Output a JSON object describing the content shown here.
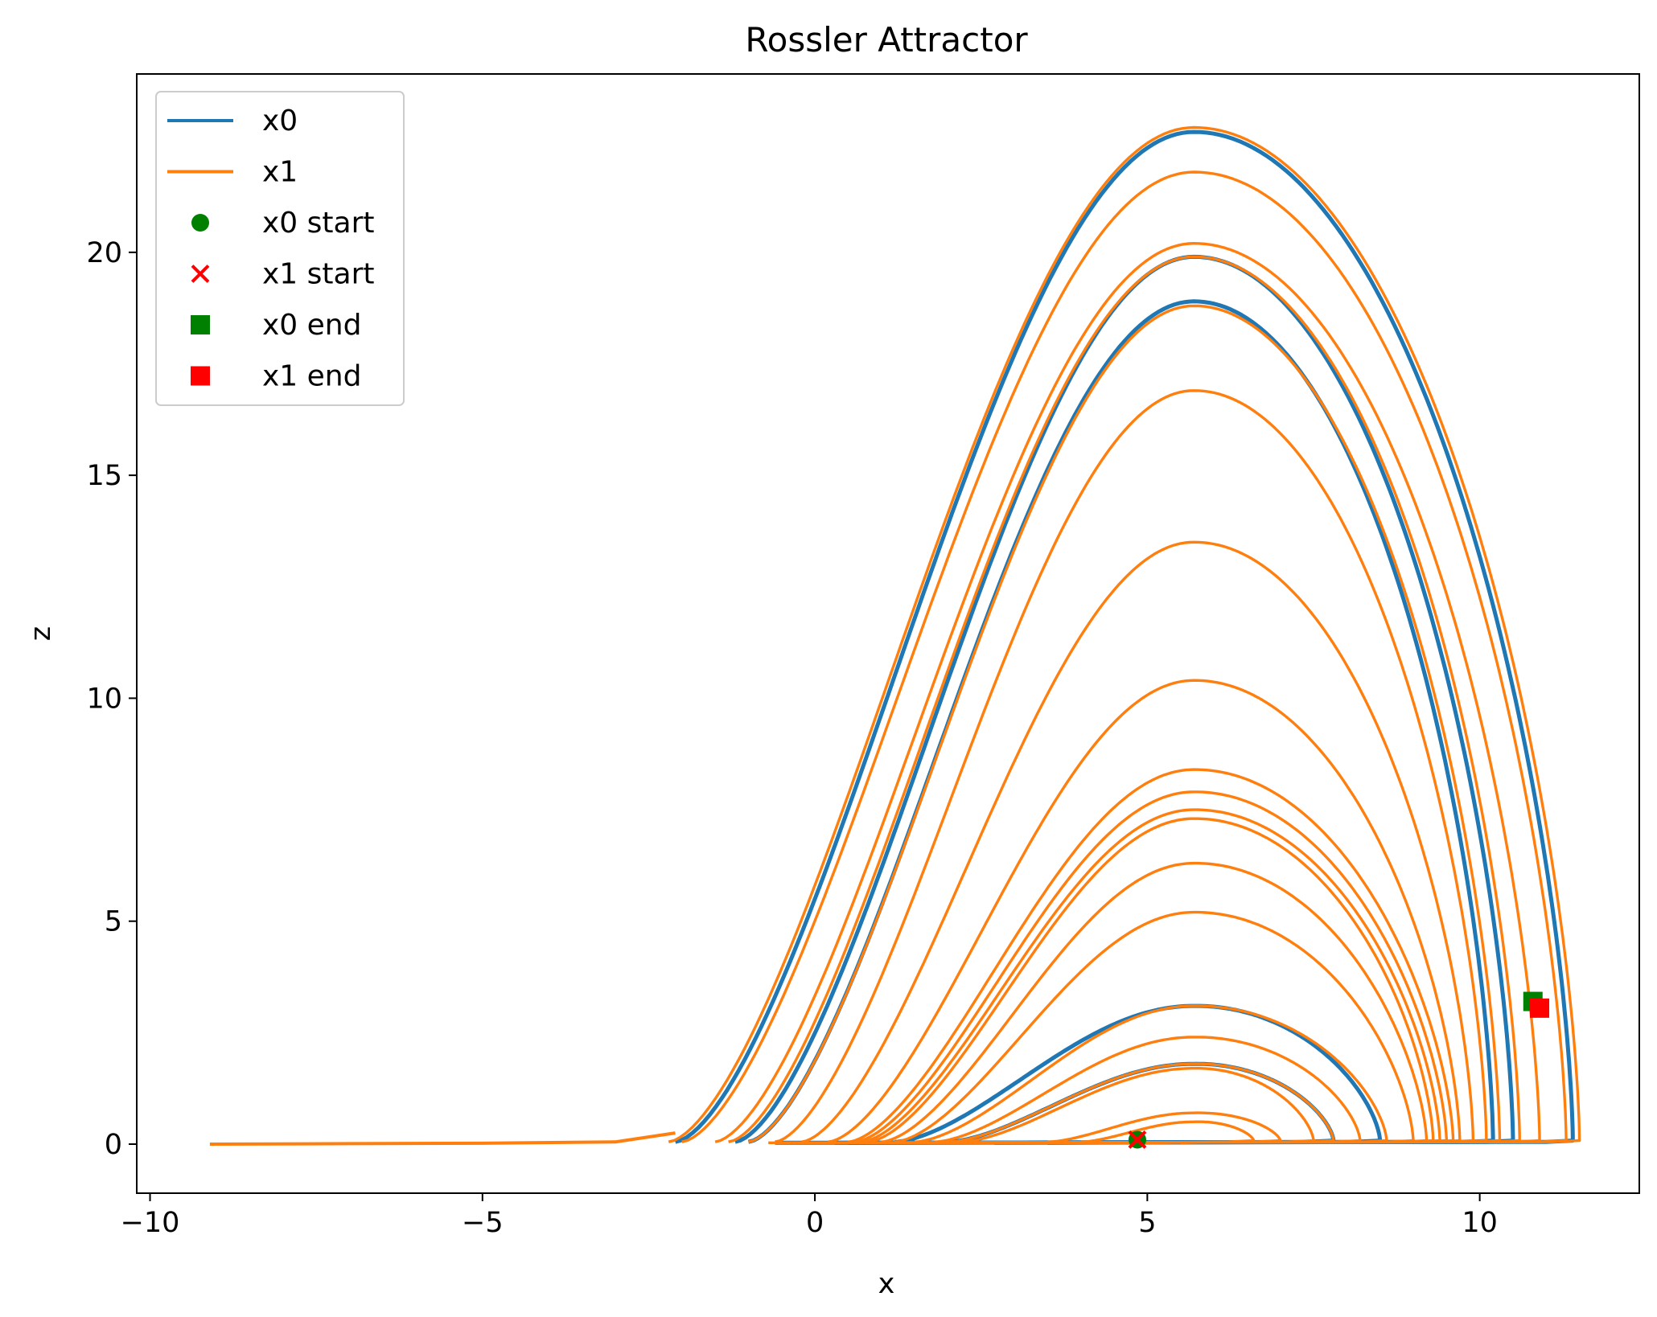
{
  "chart_data": {
    "type": "line",
    "title": "Rossler Attractor",
    "xlabel": "x",
    "ylabel": "z",
    "xlim": [
      -10.2,
      12.4
    ],
    "ylim": [
      -1.1,
      24.0
    ],
    "xticks": [
      -10,
      -5,
      0,
      5,
      10
    ],
    "yticks": [
      0,
      5,
      10,
      15,
      20
    ],
    "xtick_labels": [
      "−10",
      "−5",
      "0",
      "5",
      "10"
    ],
    "ytick_labels": [
      "0",
      "5",
      "10",
      "15",
      "20"
    ],
    "grid": false,
    "legend": {
      "placement": "upper-left",
      "entries": [
        {
          "label": "x0",
          "kind": "line",
          "color": "#1f77b4"
        },
        {
          "label": "x1",
          "kind": "line",
          "color": "#ff7f0e"
        },
        {
          "label": "x0 start",
          "kind": "circle",
          "color": "#008000"
        },
        {
          "label": "x1 start",
          "kind": "x",
          "color": "#ff0000"
        },
        {
          "label": "x0 end",
          "kind": "square",
          "color": "#008000"
        },
        {
          "label": "x1 end",
          "kind": "square",
          "color": "#ff0000"
        }
      ]
    },
    "series": [
      {
        "name": "x0",
        "color": "#1f77b4",
        "loops": [
          {
            "peak": 22.7,
            "xmin": -2.1,
            "xmax": 11.4
          },
          {
            "peak": 19.9,
            "xmin": -1.2,
            "xmax": 10.5
          },
          {
            "peak": 18.9,
            "xmin": -1.0,
            "xmax": 10.2
          },
          {
            "peak": 3.1,
            "xmin": 1.2,
            "xmax": 8.5
          },
          {
            "peak": 1.8,
            "xmin": 2.0,
            "xmax": 7.8
          }
        ]
      },
      {
        "name": "x1",
        "color": "#ff7f0e",
        "loops": [
          {
            "peak": 22.8,
            "xmin": -2.2,
            "xmax": 11.5
          },
          {
            "peak": 21.8,
            "xmin": -2.0,
            "xmax": 11.3
          },
          {
            "peak": 20.2,
            "xmin": -1.5,
            "xmax": 10.9
          },
          {
            "peak": 19.9,
            "xmin": -1.3,
            "xmax": 10.6
          },
          {
            "peak": 18.8,
            "xmin": -1.0,
            "xmax": 10.3
          },
          {
            "peak": 16.9,
            "xmin": -0.6,
            "xmax": 10.1
          },
          {
            "peak": 13.5,
            "xmin": -0.2,
            "xmax": 9.9
          },
          {
            "peak": 10.4,
            "xmin": 0.2,
            "xmax": 9.7
          },
          {
            "peak": 8.4,
            "xmin": 0.5,
            "xmax": 9.6
          },
          {
            "peak": 7.9,
            "xmin": 0.6,
            "xmax": 9.5
          },
          {
            "peak": 7.5,
            "xmin": 0.7,
            "xmax": 9.4
          },
          {
            "peak": 7.3,
            "xmin": 0.8,
            "xmax": 9.3
          },
          {
            "peak": 6.3,
            "xmin": 1.0,
            "xmax": 9.2
          },
          {
            "peak": 5.2,
            "xmin": 1.2,
            "xmax": 9.0
          },
          {
            "peak": 3.1,
            "xmin": 1.5,
            "xmax": 8.6
          },
          {
            "peak": 2.4,
            "xmin": 1.8,
            "xmax": 8.2
          },
          {
            "peak": 1.8,
            "xmin": 2.0,
            "xmax": 7.8
          },
          {
            "peak": 1.7,
            "xmin": 2.2,
            "xmax": 7.5
          },
          {
            "peak": 0.7,
            "xmin": 3.5,
            "xmax": 7.0
          },
          {
            "peak": 0.5,
            "xmin": 4.0,
            "xmax": 6.6
          }
        ],
        "tail": [
          [
            -9.1,
            0.0
          ],
          [
            -7.0,
            0.01
          ],
          [
            -5.0,
            0.02
          ],
          [
            -3.0,
            0.05
          ],
          [
            -2.1,
            0.25
          ]
        ]
      }
    ],
    "markers": [
      {
        "label": "x0 start",
        "shape": "circle",
        "color": "#008000",
        "x": 4.85,
        "z": 0.1
      },
      {
        "label": "x1 start",
        "shape": "x",
        "color": "#ff0000",
        "x": 4.85,
        "z": 0.1
      },
      {
        "label": "x0 end",
        "shape": "square",
        "color": "#008000",
        "x": 10.8,
        "z": 3.2
      },
      {
        "label": "x1 end",
        "shape": "square",
        "color": "#ff0000",
        "x": 10.9,
        "z": 3.05
      }
    ]
  }
}
